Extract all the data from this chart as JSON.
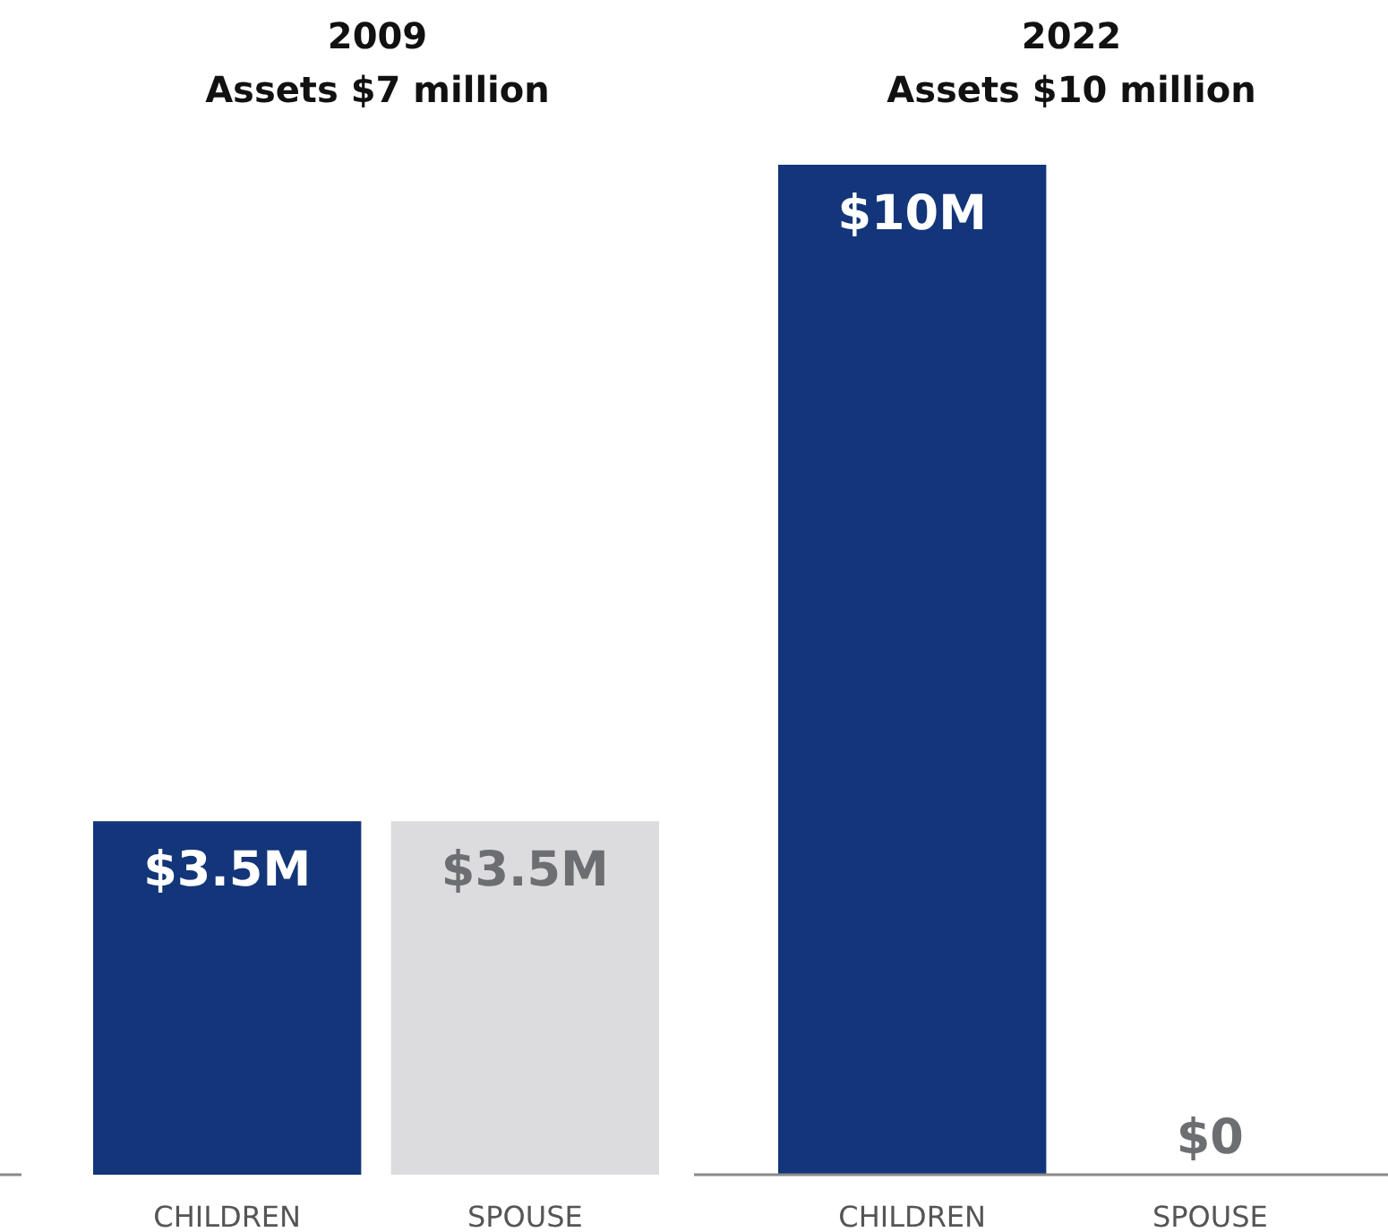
{
  "chart_data": [
    {
      "type": "bar",
      "title": "2009",
      "subtitle": "Assets $7 million",
      "categories": [
        "CHILDREN",
        "SPOUSE"
      ],
      "values": [
        3.5,
        3.5
      ],
      "colors": [
        "#13357a",
        "#dcdcde"
      ],
      "value_labels": [
        "$3.5M",
        "$3.5M"
      ]
    },
    {
      "type": "bar",
      "title": "2022",
      "subtitle": "Assets $10 million",
      "categories": [
        "CHILDREN",
        "SPOUSE"
      ],
      "values": [
        10,
        0
      ],
      "colors": [
        "#13357a",
        "#dcdcde"
      ],
      "value_labels": [
        "$10M",
        "$0"
      ]
    }
  ]
}
